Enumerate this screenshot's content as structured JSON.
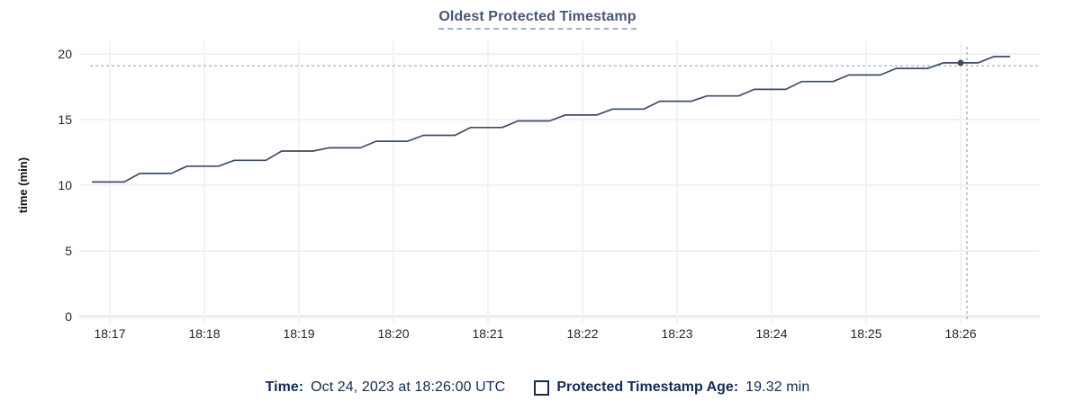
{
  "title": "Oldest Protected Timestamp",
  "footer": {
    "time_label": "Time:",
    "time_value": "Oct 24, 2023 at 18:26:00 UTC",
    "series_label": "Protected Timestamp Age:",
    "series_value": "19.32 min"
  },
  "colors": {
    "title": "#475872",
    "line": "#3d4c66",
    "dot": "#3d4c66",
    "tick_text": "#1f2228",
    "axis_label": "#111111",
    "grid": "#f1f1f1",
    "grid_vertical": "#f3f3f3",
    "baseline": "#ebebeb",
    "crosshair": "#a0b3bc",
    "footer_text": "#122c54"
  },
  "chart_data": {
    "type": "line",
    "title": "Oldest Protected Timestamp",
    "xlabel": "",
    "ylabel": "time (min)",
    "ylim": [
      0,
      20
    ],
    "y_ticks": [
      0,
      5,
      10,
      15,
      20
    ],
    "x_ticks": [
      "18:17",
      "18:18",
      "18:19",
      "18:20",
      "18:21",
      "18:22",
      "18:23",
      "18:24",
      "18:25",
      "18:26"
    ],
    "x_range": [
      "18:16:49",
      "18:26:31"
    ],
    "grid": true,
    "legend_position": "bottom",
    "series": [
      {
        "name": "Protected Timestamp Age",
        "unit": "min",
        "points": [
          [
            "18:16:49",
            10.25
          ],
          [
            "18:17:09",
            10.25
          ],
          [
            "18:17:19",
            10.9
          ],
          [
            "18:17:39",
            10.9
          ],
          [
            "18:17:49",
            11.45
          ],
          [
            "18:18:09",
            11.45
          ],
          [
            "18:18:19",
            11.9
          ],
          [
            "18:18:39",
            11.9
          ],
          [
            "18:18:49",
            12.6
          ],
          [
            "18:19:09",
            12.6
          ],
          [
            "18:19:19",
            12.85
          ],
          [
            "18:19:39",
            12.85
          ],
          [
            "18:19:49",
            13.35
          ],
          [
            "18:20:09",
            13.35
          ],
          [
            "18:20:19",
            13.8
          ],
          [
            "18:20:39",
            13.8
          ],
          [
            "18:20:49",
            14.4
          ],
          [
            "18:21:09",
            14.4
          ],
          [
            "18:21:19",
            14.9
          ],
          [
            "18:21:39",
            14.9
          ],
          [
            "18:21:49",
            15.35
          ],
          [
            "18:22:09",
            15.35
          ],
          [
            "18:22:19",
            15.8
          ],
          [
            "18:22:39",
            15.8
          ],
          [
            "18:22:49",
            16.4
          ],
          [
            "18:23:09",
            16.4
          ],
          [
            "18:23:19",
            16.8
          ],
          [
            "18:23:39",
            16.8
          ],
          [
            "18:23:49",
            17.3
          ],
          [
            "18:24:09",
            17.3
          ],
          [
            "18:24:19",
            17.9
          ],
          [
            "18:24:39",
            17.9
          ],
          [
            "18:24:49",
            18.4
          ],
          [
            "18:25:09",
            18.4
          ],
          [
            "18:25:19",
            18.9
          ],
          [
            "18:25:39",
            18.9
          ],
          [
            "18:25:49",
            19.32
          ],
          [
            "18:26:11",
            19.32
          ],
          [
            "18:26:21",
            19.8
          ],
          [
            "18:26:31",
            19.8
          ]
        ]
      }
    ],
    "hover": {
      "point_time": "18:26:00",
      "point_value": 19.32,
      "crosshair_time": "18:26:04",
      "crosshair_value": 19.1
    }
  }
}
